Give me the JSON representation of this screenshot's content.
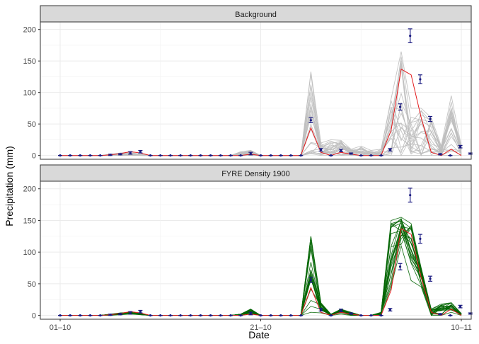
{
  "chart_data": {
    "type": "line",
    "ylabel": "Precipitation (mm)",
    "xlabel": "Date",
    "x_ticks": [
      "01–10",
      "21–10",
      "10–11"
    ],
    "x_dates": [
      "2000-10-01",
      "2000-10-02",
      "2000-10-03",
      "2000-10-04",
      "2000-10-05",
      "2000-10-06",
      "2000-10-07",
      "2000-10-08",
      "2000-10-09",
      "2000-10-10",
      "2000-10-11",
      "2000-10-12",
      "2000-10-13",
      "2000-10-14",
      "2000-10-15",
      "2000-10-16",
      "2000-10-17",
      "2000-10-18",
      "2000-10-19",
      "2000-10-20",
      "2000-10-21",
      "2000-10-22",
      "2000-10-23",
      "2000-10-24",
      "2000-10-25",
      "2000-10-26",
      "2000-10-27",
      "2000-10-28",
      "2000-10-29",
      "2000-10-30",
      "2000-10-31",
      "2000-11-01",
      "2000-11-02",
      "2000-11-03",
      "2000-11-04",
      "2000-11-05",
      "2000-11-06",
      "2000-11-07",
      "2000-11-08",
      "2000-11-09",
      "2000-11-10"
    ],
    "ylim": [
      -6,
      212
    ],
    "y_ticks": [
      0,
      50,
      100,
      150,
      200
    ],
    "grid": true,
    "panels": [
      {
        "title": "Background",
        "ensemble_color": "#bebebe",
        "ensemble_min": [
          0,
          0,
          0,
          0,
          0,
          0,
          0,
          0,
          0,
          0,
          0,
          0,
          0,
          0,
          0,
          0,
          0,
          0,
          0,
          0,
          0,
          0,
          0,
          0,
          0,
          3,
          0,
          0,
          0,
          0,
          0,
          0,
          0,
          0,
          0,
          0,
          0,
          0,
          0,
          0,
          0
        ],
        "ensemble_max": [
          0,
          0,
          0,
          0,
          0,
          2,
          4,
          5,
          2,
          0,
          0,
          0,
          0,
          0,
          0,
          0,
          0,
          0,
          6,
          8,
          0,
          0,
          0,
          0,
          0,
          133,
          20,
          25,
          24,
          10,
          15,
          8,
          10,
          90,
          165,
          75,
          75,
          60,
          15,
          95,
          15
        ],
        "mean": [
          0,
          0,
          0,
          0,
          0,
          1,
          3,
          6,
          4,
          0,
          0,
          0,
          0,
          0,
          0,
          0,
          0,
          0,
          0,
          2,
          0,
          0,
          0,
          0,
          0,
          44,
          5,
          0,
          5,
          2,
          0,
          0,
          0,
          40,
          137,
          128,
          60,
          5,
          0,
          10,
          0
        ]
      },
      {
        "title": "FYRE Density 1900",
        "ensemble_color": "#006400",
        "ensemble_min": [
          0,
          0,
          0,
          0,
          0,
          0,
          1,
          2,
          1,
          0,
          0,
          0,
          0,
          0,
          0,
          0,
          0,
          0,
          1,
          3,
          0,
          0,
          0,
          0,
          0,
          5,
          4,
          0,
          2,
          0,
          0,
          0,
          0,
          45,
          110,
          55,
          45,
          0,
          0,
          5,
          0
        ],
        "ensemble_max": [
          0,
          0,
          0,
          0,
          0,
          2,
          4,
          5,
          3,
          0,
          0,
          0,
          0,
          0,
          0,
          0,
          0,
          0,
          2,
          10,
          0,
          0,
          0,
          0,
          0,
          125,
          20,
          2,
          10,
          5,
          0,
          0,
          5,
          150,
          155,
          145,
          75,
          10,
          18,
          20,
          3
        ],
        "mean": [
          0,
          0,
          0,
          0,
          0,
          1,
          3,
          6,
          4,
          0,
          0,
          0,
          0,
          0,
          0,
          0,
          0,
          0,
          0,
          2,
          0,
          0,
          0,
          0,
          0,
          44,
          5,
          0,
          5,
          2,
          0,
          0,
          0,
          40,
          137,
          128,
          60,
          5,
          0,
          10,
          0
        ]
      }
    ],
    "observations": {
      "color": "#1a1a80",
      "value": [
        0,
        0,
        0,
        0,
        0,
        1,
        2,
        4,
        6,
        0,
        0,
        0,
        0,
        0,
        0,
        0,
        0,
        0,
        0,
        3,
        0,
        0,
        0,
        0,
        0,
        56,
        9,
        0,
        8,
        3,
        0,
        0,
        0,
        9,
        77,
        190,
        121,
        58,
        2,
        0,
        14,
        3
      ],
      "err": [
        0,
        0,
        0,
        0,
        0,
        1,
        1,
        2,
        2,
        0,
        0,
        0,
        0,
        0,
        0,
        0,
        0,
        0,
        0,
        2,
        0,
        0,
        0,
        0,
        0,
        4,
        2,
        0,
        2,
        1,
        0,
        0,
        0,
        2,
        5,
        11,
        7,
        4,
        1,
        0,
        2,
        1
      ],
      "x_index": [
        0,
        1,
        2,
        3,
        4,
        5,
        6,
        7,
        8,
        9,
        10,
        11,
        12,
        13,
        14,
        15,
        16,
        17,
        18,
        19,
        20,
        21,
        22,
        23,
        24,
        25,
        26,
        27,
        28,
        29,
        30,
        31,
        32,
        32.9,
        33.9,
        34.9,
        35.9,
        36.9,
        37.9,
        38.9,
        39.9,
        40.9
      ]
    },
    "colors": {
      "mean_line": "#e31a1c",
      "strip_fill": "#d9d9d9",
      "grid": "#ebebeb"
    }
  }
}
